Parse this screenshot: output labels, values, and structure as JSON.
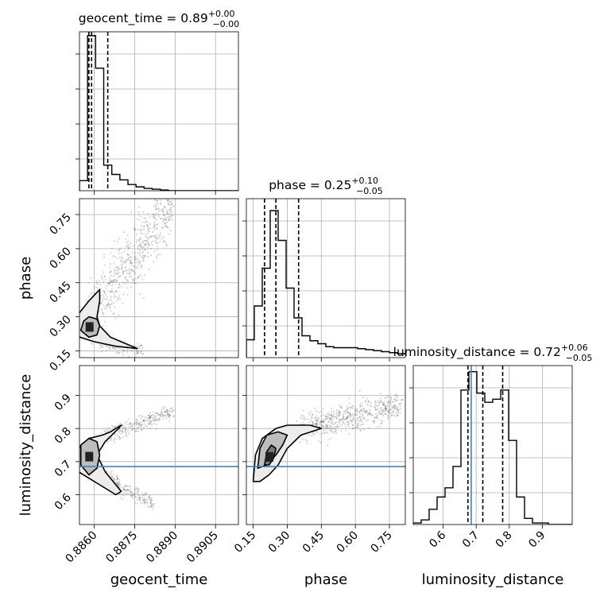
{
  "chart_data": {
    "type": "corner",
    "parameters": [
      "geocent_time",
      "phase",
      "luminosity_distance"
    ],
    "axis_labels": {
      "geocent_time": "geocent_time",
      "phase": "phase",
      "luminosity_distance": "luminosity_distance"
    },
    "titles": {
      "geocent_time": {
        "name": "geocent_time",
        "median": "0.89",
        "plus": "+0.00",
        "minus": "−0.00"
      },
      "phase": {
        "name": "phase",
        "median": "0.25",
        "plus": "+0.10",
        "minus": "−0.05"
      },
      "luminosity_distance": {
        "name": "luminosity_distance",
        "median": "0.72",
        "plus": "+0.06",
        "minus": "−0.05"
      }
    },
    "ranges": {
      "geocent_time": [
        0.88545,
        0.89135
      ],
      "phase": [
        0.12,
        0.82
      ],
      "luminosity_distance": [
        0.51,
        0.99
      ]
    },
    "ticks": {
      "geocent_time": {
        "values": [
          0.886,
          0.8875,
          0.889,
          0.8905
        ],
        "labels": [
          "0.8860",
          "0.8875",
          "0.8890",
          "0.8905"
        ]
      },
      "phase": {
        "values": [
          0.15,
          0.3,
          0.45,
          0.6,
          0.75
        ],
        "labels": [
          "0.15",
          "0.30",
          "0.45",
          "0.60",
          "0.75"
        ]
      },
      "luminosity_distance": {
        "values": [
          0.6,
          0.7,
          0.8,
          0.9
        ],
        "labels": [
          "0.6",
          "0.7",
          "0.8",
          "0.9"
        ]
      }
    },
    "quantiles": {
      "geocent_time": [
        0.8858,
        0.8859,
        0.8865
      ],
      "phase": [
        0.2,
        0.25,
        0.35
      ],
      "luminosity_distance": [
        0.675,
        0.72,
        0.78
      ]
    },
    "truths": {
      "luminosity_distance": 0.685
    },
    "truth_color": "#4682b4",
    "histograms": {
      "geocent_time": {
        "edges": [
          0.88545,
          0.88575,
          0.88605,
          0.88635,
          0.88665,
          0.88695,
          0.88725,
          0.88755,
          0.88785,
          0.88815,
          0.88845,
          0.88875,
          0.88905,
          0.88935,
          0.88965,
          0.88995,
          0.89025,
          0.89055,
          0.89085,
          0.89115,
          0.89135
        ],
        "counts": [
          13,
          200,
          158,
          33,
          21,
          14,
          8,
          5,
          3,
          2,
          1,
          0,
          0,
          0,
          0,
          0,
          0,
          0,
          0,
          0
        ],
        "ymax": 205
      },
      "phase": {
        "edges": [
          0.12,
          0.155,
          0.19,
          0.225,
          0.26,
          0.295,
          0.33,
          0.365,
          0.4,
          0.435,
          0.47,
          0.505,
          0.54,
          0.575,
          0.61,
          0.645,
          0.68,
          0.715,
          0.75,
          0.785,
          0.82
        ],
        "counts": [
          18,
          52,
          90,
          148,
          118,
          70,
          40,
          22,
          17,
          14,
          11,
          10,
          10,
          10,
          9,
          8,
          7,
          6,
          5,
          4
        ],
        "ymax": 160
      },
      "luminosity_distance": {
        "edges": [
          0.51,
          0.534,
          0.558,
          0.582,
          0.606,
          0.63,
          0.654,
          0.678,
          0.702,
          0.726,
          0.75,
          0.774,
          0.798,
          0.822,
          0.846,
          0.87,
          0.894,
          0.918,
          0.942,
          0.966,
          0.99
        ],
        "counts": [
          1,
          3,
          10,
          18,
          24,
          38,
          88,
          100,
          86,
          80,
          82,
          88,
          55,
          18,
          4,
          1,
          1,
          0,
          0,
          0
        ],
        "ymax": 104
      }
    },
    "contours": {
      "phase_vs_geocent_time": [
        [
          [
            0.8852,
            0.22
          ],
          [
            0.8854,
            0.31
          ],
          [
            0.8858,
            0.37
          ],
          [
            0.8862,
            0.42
          ],
          [
            0.8862,
            0.37
          ],
          [
            0.8861,
            0.3
          ],
          [
            0.8862,
            0.26
          ],
          [
            0.8866,
            0.21
          ],
          [
            0.8872,
            0.18
          ],
          [
            0.8876,
            0.16
          ],
          [
            0.8868,
            0.17
          ],
          [
            0.886,
            0.19
          ],
          [
            0.8852,
            0.22
          ]
        ],
        [
          [
            0.8855,
            0.24
          ],
          [
            0.8856,
            0.28
          ],
          [
            0.8858,
            0.3
          ],
          [
            0.8861,
            0.29
          ],
          [
            0.8862,
            0.26
          ],
          [
            0.8861,
            0.22
          ],
          [
            0.8858,
            0.21
          ],
          [
            0.8855,
            0.24
          ]
        ]
      ],
      "luminosity_distance_vs_geocent_time": [
        [
          [
            0.8852,
            0.68
          ],
          [
            0.8854,
            0.74
          ],
          [
            0.8858,
            0.77
          ],
          [
            0.8863,
            0.78
          ],
          [
            0.8866,
            0.79
          ],
          [
            0.887,
            0.81
          ],
          [
            0.8869,
            0.8
          ],
          [
            0.8864,
            0.76
          ],
          [
            0.8861,
            0.72
          ],
          [
            0.8864,
            0.67
          ],
          [
            0.887,
            0.61
          ],
          [
            0.8868,
            0.6
          ],
          [
            0.8862,
            0.63
          ],
          [
            0.8858,
            0.65
          ],
          [
            0.8852,
            0.68
          ]
        ],
        [
          [
            0.8855,
            0.69
          ],
          [
            0.8855,
            0.75
          ],
          [
            0.8858,
            0.77
          ],
          [
            0.8861,
            0.76
          ],
          [
            0.8862,
            0.72
          ],
          [
            0.8861,
            0.68
          ],
          [
            0.8858,
            0.66
          ],
          [
            0.8855,
            0.69
          ]
        ]
      ],
      "luminosity_distance_vs_phase": [
        [
          [
            0.15,
            0.64
          ],
          [
            0.16,
            0.72
          ],
          [
            0.19,
            0.77
          ],
          [
            0.25,
            0.8
          ],
          [
            0.3,
            0.81
          ],
          [
            0.4,
            0.81
          ],
          [
            0.45,
            0.8
          ],
          [
            0.36,
            0.78
          ],
          [
            0.3,
            0.74
          ],
          [
            0.26,
            0.69
          ],
          [
            0.22,
            0.66
          ],
          [
            0.18,
            0.64
          ],
          [
            0.15,
            0.64
          ]
        ],
        [
          [
            0.17,
            0.68
          ],
          [
            0.18,
            0.74
          ],
          [
            0.21,
            0.78
          ],
          [
            0.26,
            0.79
          ],
          [
            0.3,
            0.78
          ],
          [
            0.28,
            0.75
          ],
          [
            0.25,
            0.72
          ],
          [
            0.21,
            0.69
          ],
          [
            0.17,
            0.68
          ]
        ],
        [
          [
            0.2,
            0.69
          ],
          [
            0.21,
            0.73
          ],
          [
            0.23,
            0.75
          ],
          [
            0.25,
            0.74
          ],
          [
            0.24,
            0.71
          ],
          [
            0.22,
            0.69
          ],
          [
            0.2,
            0.69
          ]
        ]
      ]
    },
    "scatter_trends": {
      "phase_vs_geocent_time": [
        {
          "x": [
            0.8858,
            0.8889
          ],
          "y": [
            0.3,
            0.8
          ],
          "spread": 0.07,
          "n": 650
        },
        {
          "x": [
            0.8862,
            0.8878
          ],
          "y": [
            0.18,
            0.15
          ],
          "spread": 0.015,
          "n": 120
        }
      ],
      "luminosity_distance_vs_geocent_time": [
        {
          "x": [
            0.8862,
            0.8889
          ],
          "y": [
            0.77,
            0.85
          ],
          "spread": 0.012,
          "n": 280
        },
        {
          "x": [
            0.8862,
            0.8882
          ],
          "y": [
            0.66,
            0.57
          ],
          "spread": 0.012,
          "n": 240
        }
      ],
      "luminosity_distance_vs_phase": [
        {
          "x": [
            0.35,
            0.8
          ],
          "y": [
            0.8,
            0.87
          ],
          "spread": 0.02,
          "n": 600
        }
      ]
    }
  }
}
